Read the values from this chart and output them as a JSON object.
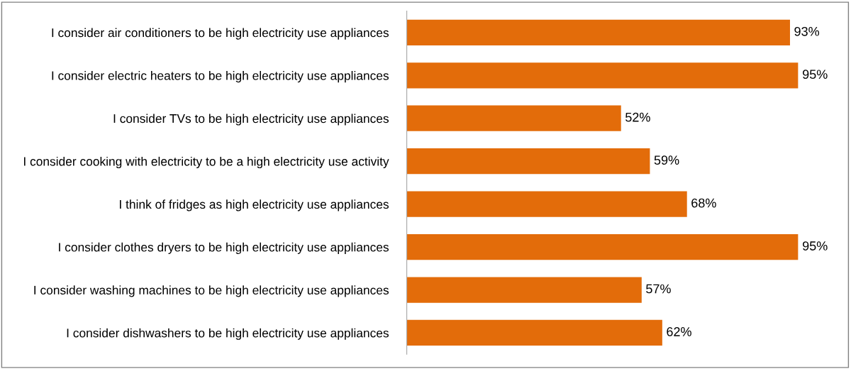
{
  "chart_data": {
    "type": "bar",
    "orientation": "horizontal",
    "categories": [
      "I consider air conditioners to be high electricity use appliances",
      "I consider electric heaters to be high electricity use appliances",
      "I consider TVs to be high electricity use appliances",
      "I consider cooking with electricity to be a high electricity use activity",
      "I think of fridges as high electricity use appliances",
      "I consider clothes dryers to be high electricity use appliances",
      "I consider washing machines to be high electricity use appliances",
      "I consider dishwashers to be high electricity use appliances"
    ],
    "values": [
      93,
      95,
      52,
      59,
      68,
      95,
      57,
      62
    ],
    "value_labels": [
      "93%",
      "95%",
      "52%",
      "59%",
      "68%",
      "95%",
      "57%",
      "62%"
    ],
    "color": "#e36c0a",
    "grid": false,
    "legend": false
  }
}
